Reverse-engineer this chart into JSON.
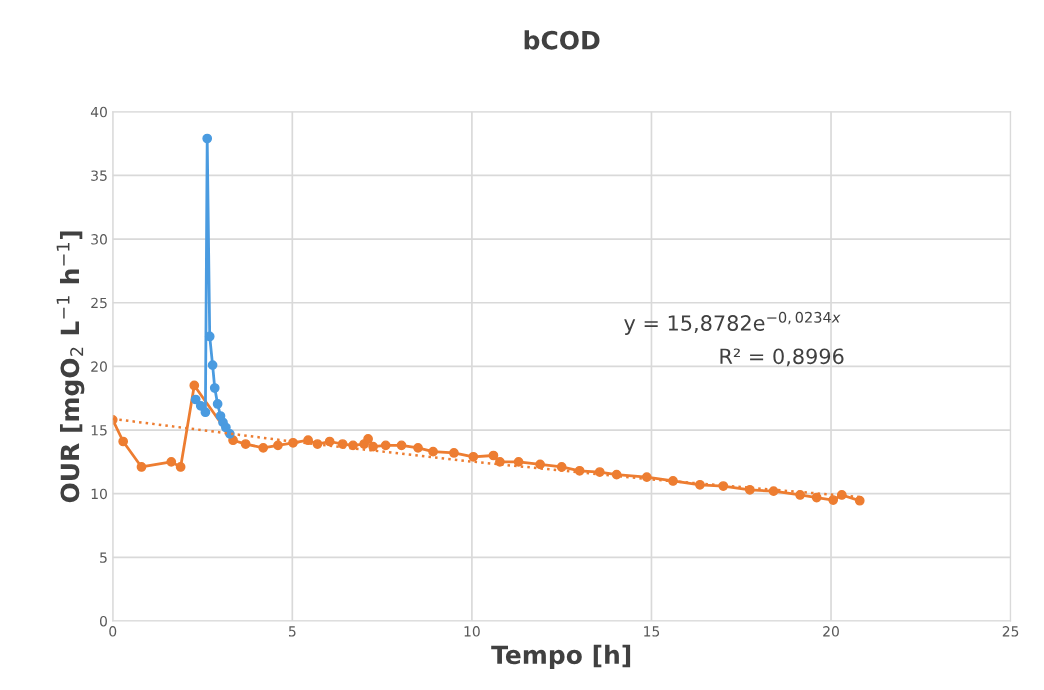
{
  "chart_data": {
    "type": "line",
    "title": "bCOD",
    "xlabel": "Tempo [h]",
    "ylabel": "OUR [mgO$_{2}$ L$^{−1}$ h$^{−1}$]",
    "annotations": [
      "y = 15,8782e$^{−0,0234x}$",
      "R² = 0,8996"
    ],
    "xlim": [
      0,
      25
    ],
    "xticks": [
      0,
      5,
      10,
      15,
      20,
      25
    ],
    "ylim": [
      0,
      40
    ],
    "yticks": [
      0,
      5,
      10,
      15,
      20,
      25,
      30,
      35,
      40
    ],
    "grid": true,
    "marker": "circle",
    "line_style": "solid",
    "series": [
      {
        "color": "#ed7d31",
        "x": [
          0,
          0.29,
          0.8,
          1.63,
          1.89,
          2.27,
          3.35,
          3.7,
          4.19,
          4.6,
          5.02,
          5.44,
          5.7,
          6.04,
          6.4,
          6.69,
          7.0,
          7.11,
          7.25,
          7.6,
          8.04,
          8.5,
          8.92,
          9.5,
          10.04,
          10.6,
          10.78,
          11.3,
          11.9,
          12.5,
          13.0,
          13.56,
          14.03,
          14.87,
          15.6,
          16.35,
          17.0,
          17.74,
          18.4,
          19.14,
          19.6,
          20.06,
          20.3,
          20.8
        ],
        "values": [
          15.8,
          14.1,
          12.1,
          12.5,
          12.1,
          18.5,
          14.2,
          13.9,
          13.6,
          13.8,
          14.0,
          14.2,
          13.9,
          14.1,
          13.9,
          13.8,
          13.9,
          14.3,
          13.7,
          13.8,
          13.8,
          13.6,
          13.3,
          13.2,
          12.9,
          13.0,
          12.5,
          12.5,
          12.3,
          12.1,
          11.8,
          11.7,
          11.5,
          11.3,
          11.0,
          10.7,
          10.6,
          10.3,
          10.2,
          9.9,
          9.7,
          9.5,
          9.9,
          9.45
        ]
      },
      {
        "color": "#4a9be0",
        "x": [
          2.31,
          2.45,
          2.58,
          2.63,
          2.7,
          2.78,
          2.84,
          2.92,
          3.0,
          3.07,
          3.15,
          3.26
        ],
        "values": [
          17.4,
          16.9,
          16.4,
          37.9,
          22.35,
          20.1,
          18.3,
          17.05,
          16.1,
          15.6,
          15.2,
          14.7
        ]
      },
      {
        "type": "line",
        "color": "#ed7d31",
        "marker": "none",
        "line_style": "dotted",
        "x": [
          0,
          5,
          10,
          15,
          20.8
        ],
        "values": [
          15.88,
          14.1,
          12.52,
          11.12,
          9.74
        ]
      }
    ]
  }
}
